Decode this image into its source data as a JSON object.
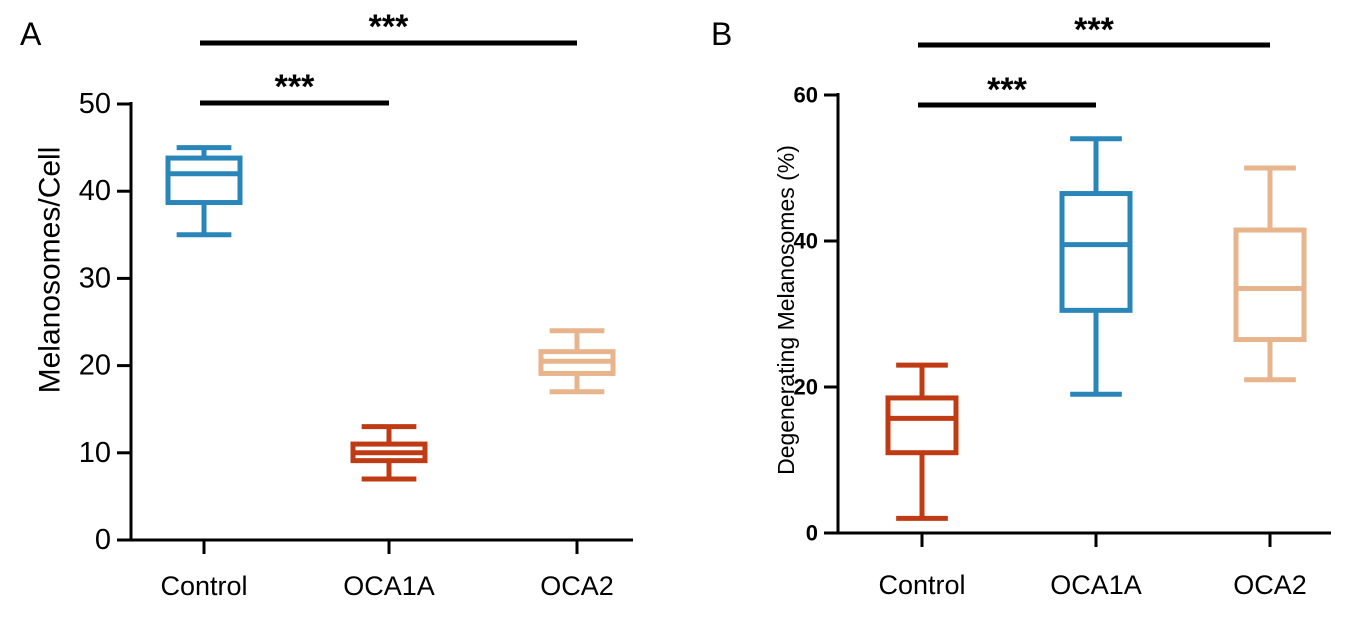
{
  "chart_data": [
    {
      "panel_label": "A",
      "type": "boxplot",
      "ylabel": "Melanosomes/Cell",
      "ylim": [
        0,
        50
      ],
      "yticks": [
        0,
        10,
        20,
        30,
        40,
        50
      ],
      "categories": [
        "Control",
        "OCA1A",
        "OCA2"
      ],
      "boxes": [
        {
          "category": "Control",
          "color": "#2a86b8",
          "min": 35,
          "q1": 38.7,
          "median": 42,
          "q3": 43.8,
          "max": 45
        },
        {
          "category": "OCA1A",
          "color": "#c03b14",
          "min": 7,
          "q1": 9.1,
          "median": 10,
          "q3": 11,
          "max": 13
        },
        {
          "category": "OCA2",
          "color": "#e8b48c",
          "min": 17,
          "q1": 19.1,
          "median": 20.5,
          "q3": 21.6,
          "max": 24
        }
      ],
      "significance": [
        {
          "from": "Control",
          "to": "OCA2",
          "label": "***"
        },
        {
          "from": "Control",
          "to": "OCA1A",
          "label": "***"
        }
      ]
    },
    {
      "panel_label": "B",
      "type": "boxplot",
      "ylabel": "Degenerating Melanosomes (%)",
      "ylim": [
        0,
        60
      ],
      "yticks": [
        0,
        20,
        40,
        60
      ],
      "categories": [
        "Control",
        "OCA1A",
        "OCA2"
      ],
      "boxes": [
        {
          "category": "Control",
          "color": "#c03b14",
          "min": 2,
          "q1": 11,
          "median": 15.7,
          "q3": 18.5,
          "max": 23
        },
        {
          "category": "OCA1A",
          "color": "#2a86b8",
          "min": 19,
          "q1": 30.5,
          "median": 39.5,
          "q3": 46.5,
          "max": 54
        },
        {
          "category": "OCA2",
          "color": "#e8b48c",
          "min": 21,
          "q1": 26.5,
          "median": 33.5,
          "q3": 41.5,
          "max": 50
        }
      ],
      "significance": [
        {
          "from": "Control",
          "to": "OCA2",
          "label": "***"
        },
        {
          "from": "Control",
          "to": "OCA1A",
          "label": "***"
        }
      ]
    }
  ]
}
